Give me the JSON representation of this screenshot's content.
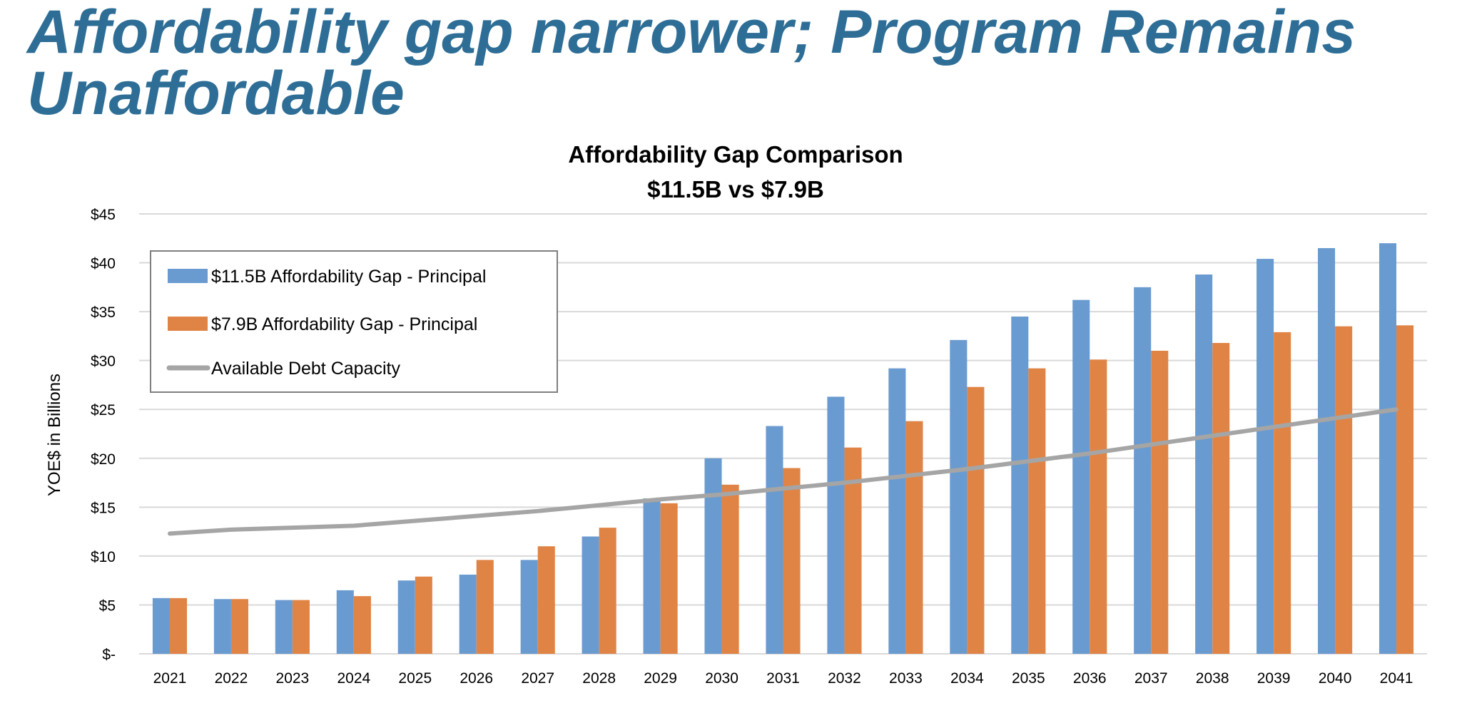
{
  "slide_title": "Affordability gap narrower; Program Remains Unaffordable",
  "chart_data": {
    "type": "bar",
    "title": "Affordability Gap Comparison",
    "subtitle": "$11.5B vs $7.9B",
    "xlabel": "",
    "ylabel": "YOE$ in Billions",
    "ylim": [
      0,
      45
    ],
    "yticks": [
      0,
      5,
      10,
      15,
      20,
      25,
      30,
      35,
      40,
      45
    ],
    "ytick_labels": [
      "$-",
      "$5",
      "$10",
      "$15",
      "$20",
      "$25",
      "$30",
      "$35",
      "$40",
      "$45"
    ],
    "grid": true,
    "legend_position": "top-left",
    "categories": [
      "2021",
      "2022",
      "2023",
      "2024",
      "2025",
      "2026",
      "2027",
      "2028",
      "2029",
      "2030",
      "2031",
      "2032",
      "2033",
      "2034",
      "2035",
      "2036",
      "2037",
      "2038",
      "2039",
      "2040",
      "2041"
    ],
    "series": [
      {
        "name": "$11.5B Affordability Gap - Principal",
        "type": "bar",
        "color": "#6a9bd0",
        "values": [
          5.7,
          5.6,
          5.5,
          6.5,
          7.5,
          8.1,
          9.6,
          12.0,
          15.9,
          20.0,
          23.3,
          26.3,
          29.2,
          32.1,
          34.5,
          36.2,
          37.5,
          38.8,
          40.4,
          41.5,
          42.0
        ]
      },
      {
        "name": "$7.9B Affordability Gap - Principal",
        "type": "bar",
        "color": "#e08445",
        "values": [
          5.7,
          5.6,
          5.5,
          5.9,
          7.9,
          9.6,
          11.0,
          12.9,
          15.4,
          17.3,
          19.0,
          21.1,
          23.8,
          27.3,
          29.2,
          30.1,
          31.0,
          31.8,
          32.9,
          33.5,
          33.6
        ]
      },
      {
        "name": "Available Debt Capacity",
        "type": "line",
        "color": "#a5a5a5",
        "values": [
          12.3,
          12.7,
          12.9,
          13.1,
          13.6,
          14.1,
          14.6,
          15.2,
          15.8,
          16.3,
          16.9,
          17.5,
          18.2,
          18.9,
          19.7,
          20.5,
          21.4,
          22.3,
          23.2,
          24.1,
          25.0
        ]
      }
    ]
  }
}
